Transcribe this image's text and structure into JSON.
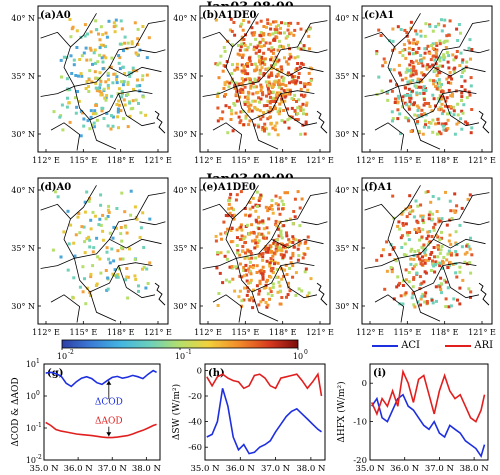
{
  "titles": {
    "row1": "Jan03 08:00",
    "row2": "Jan03 09:00"
  },
  "maps": [
    {
      "label": "(a)A0"
    },
    {
      "label": "(b)A1DE0"
    },
    {
      "label": "(c)A1"
    },
    {
      "label": "(d)A0"
    },
    {
      "label": "(e)A1DE0"
    },
    {
      "label": "(f)A1"
    }
  ],
  "map_axes": {
    "lat_ticks": [
      "40° N",
      "35° N",
      "30° N"
    ],
    "lon_ticks": [
      "112° E",
      "115° E",
      "118° E",
      "121° E"
    ]
  },
  "colorbar": {
    "ticks": [
      "10",
      "10",
      "10"
    ],
    "exponents": [
      "-2",
      "-1",
      "0"
    ],
    "stops": [
      "#2e3ea6",
      "#3a7bd6",
      "#44b6e0",
      "#6fd1b8",
      "#b5df6a",
      "#f2d13c",
      "#f28b2a",
      "#d63a1e",
      "#7a0c0c"
    ]
  },
  "legend": {
    "aci": "ACI",
    "ari": "ARI",
    "aci_color": "#1e2fe0",
    "ari_color": "#e21f1f"
  },
  "chart_data": [
    {
      "type": "line",
      "panel": "(g)",
      "ylabel": "ΔCOD & ΔAOD",
      "yscale": "log",
      "ylim": [
        0.01,
        10
      ],
      "yticks_base": [
        "10",
        "10",
        "10",
        "10"
      ],
      "yticks_exp": [
        "-2",
        "-1",
        "0",
        "1"
      ],
      "xlim": [
        35.0,
        38.4
      ],
      "xticks": [
        "35.0 N",
        "36.0 N",
        "37.0 N",
        "38.0 N"
      ],
      "annotations": [
        "ΔCOD",
        "ΔAOD"
      ],
      "x": [
        35.05,
        35.2,
        35.35,
        35.5,
        35.65,
        35.8,
        35.95,
        36.1,
        36.25,
        36.4,
        36.55,
        36.7,
        36.85,
        37.0,
        37.15,
        37.3,
        37.45,
        37.6,
        37.75,
        37.9,
        38.05,
        38.2,
        38.3
      ],
      "series": [
        {
          "values": [
            5.2,
            5.5,
            5.0,
            4.2,
            2.5,
            2.0,
            2.8,
            3.6,
            4.0,
            3.5,
            2.6,
            2.3,
            3.0,
            3.8,
            4.1,
            3.6,
            3.9,
            4.4,
            4.0,
            3.5,
            4.8,
            6.2,
            5.5
          ],
          "color": "#1e2fe0"
        },
        {
          "values": [
            0.15,
            0.12,
            0.09,
            0.08,
            0.075,
            0.07,
            0.065,
            0.062,
            0.06,
            0.058,
            0.055,
            0.052,
            0.05,
            0.05,
            0.052,
            0.055,
            0.058,
            0.065,
            0.075,
            0.085,
            0.1,
            0.12,
            0.13
          ],
          "color": "#e21f1f"
        }
      ]
    },
    {
      "type": "line",
      "panel": "(h)",
      "ylabel": "ΔSW (W/m²)",
      "ylim": [
        -70,
        5
      ],
      "yticks": [
        "0",
        "-20",
        "-40",
        "-60"
      ],
      "xlim": [
        35.0,
        38.4
      ],
      "xticks": [
        "35.0 N",
        "36.0 N",
        "37.0 N",
        "38.0 N"
      ],
      "x": [
        35.05,
        35.2,
        35.35,
        35.5,
        35.65,
        35.8,
        35.95,
        36.1,
        36.25,
        36.4,
        36.55,
        36.7,
        36.85,
        37.0,
        37.15,
        37.3,
        37.45,
        37.6,
        37.75,
        37.9,
        38.05,
        38.2,
        38.3
      ],
      "series": [
        {
          "values": [
            -52,
            -50,
            -40,
            -14,
            -28,
            -52,
            -62,
            -58,
            -65,
            -64,
            -60,
            -58,
            -55,
            -48,
            -42,
            -36,
            -32,
            -30,
            -34,
            -38,
            -42,
            -46,
            -48
          ],
          "color": "#1e2fe0"
        },
        {
          "values": [
            -5,
            -12,
            -5,
            -3,
            -6,
            -8,
            -9,
            -14,
            -12,
            -4,
            -3,
            -6,
            -12,
            -14,
            -6,
            -5,
            -4,
            -3,
            -8,
            -14,
            -9,
            -3,
            -20
          ],
          "color": "#e21f1f"
        }
      ]
    },
    {
      "type": "line",
      "panel": "(i)",
      "ylabel": "ΔHFX (W/m²)",
      "ylim": [
        -20,
        5
      ],
      "yticks": [
        "0",
        "-10",
        "-20"
      ],
      "xlim": [
        35.0,
        38.4
      ],
      "xticks": [
        "35.0 N",
        "36.0 N",
        "37.0 N",
        "38.0 N"
      ],
      "x": [
        35.05,
        35.2,
        35.35,
        35.5,
        35.65,
        35.8,
        35.95,
        36.1,
        36.25,
        36.4,
        36.55,
        36.7,
        36.85,
        37.0,
        37.15,
        37.3,
        37.45,
        37.6,
        37.75,
        37.9,
        38.05,
        38.2,
        38.3
      ],
      "series": [
        {
          "values": [
            -6,
            -4,
            -9,
            -10,
            -7,
            -4,
            -3,
            -6,
            -7,
            -9,
            -11,
            -12,
            -10,
            -13,
            -14,
            -11,
            -12,
            -13,
            -15,
            -16,
            -17,
            -19,
            -16
          ],
          "color": "#1e2fe0"
        },
        {
          "values": [
            -5,
            -8,
            -4,
            -6,
            -2,
            -6,
            3,
            0,
            -5,
            1,
            2,
            -3,
            -8,
            -2,
            2,
            -2,
            -4,
            -3,
            -6,
            -9,
            -10,
            -7,
            -3
          ],
          "color": "#e21f1f"
        }
      ]
    }
  ]
}
